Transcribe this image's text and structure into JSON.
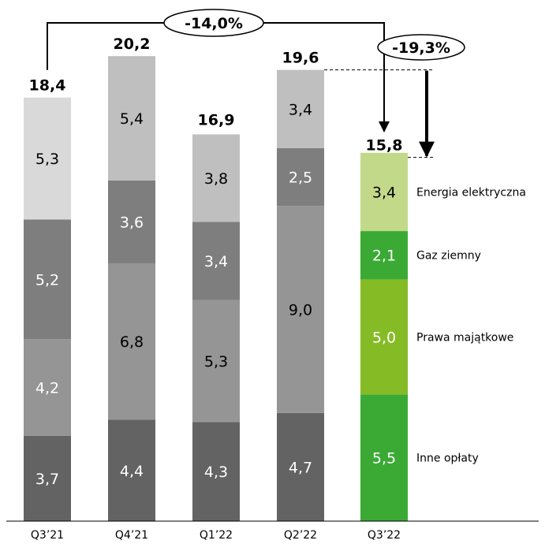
{
  "chart_data": {
    "type": "bar",
    "stacked": true,
    "categories": [
      "Q3’21",
      "Q4’21",
      "Q1’22",
      "Q2’22",
      "Q3’22"
    ],
    "segment_order": [
      "Inne opłaty",
      "Prawa majątkowe",
      "Gaz ziemny",
      "Energia elektryczna"
    ],
    "bars": [
      {
        "segments": [
          3.7,
          4.2,
          5.2,
          5.3
        ],
        "segment_labels": [
          "3,7",
          "4,2",
          "5,2",
          "5,3"
        ],
        "total": 18.4,
        "total_label": "18,4"
      },
      {
        "segments": [
          4.4,
          6.8,
          3.6,
          5.4
        ],
        "segment_labels": [
          "4,4",
          "6,8",
          "3,6",
          "5,4"
        ],
        "total": 20.2,
        "total_label": "20,2"
      },
      {
        "segments": [
          4.3,
          5.3,
          3.4,
          3.8
        ],
        "segment_labels": [
          "4,3",
          "5,3",
          "3,4",
          "3,8"
        ],
        "total": 16.9,
        "total_label": "16,9"
      },
      {
        "segments": [
          4.7,
          9.0,
          2.5,
          3.4
        ],
        "segment_labels": [
          "4,7",
          "9,0",
          "2,5",
          "3,4"
        ],
        "total": 19.6,
        "total_label": "19,6"
      },
      {
        "segments": [
          5.5,
          5.0,
          2.1,
          3.4
        ],
        "segment_labels": [
          "5,5",
          "5,0",
          "2,1",
          "3,4"
        ],
        "total": 15.8,
        "total_label": "15,8"
      }
    ],
    "legend": [
      "Energia elektryczna",
      "Gaz ziemny",
      "Prawa majątkowe",
      "Inne opłaty"
    ],
    "annotations": [
      {
        "label": "-14,0%",
        "from": "Q3’21",
        "to": "Q3’22"
      },
      {
        "label": "-19,3%",
        "from": "Q2’22",
        "to": "Q3’22"
      }
    ],
    "colors": {
      "Q3_21": [
        "#636363",
        "#959595",
        "#7e7e7e",
        "#d9d9d9"
      ],
      "Q4_21": [
        "#636363",
        "#959595",
        "#7e7e7e",
        "#bfbfbf"
      ],
      "Q1_22": [
        "#636363",
        "#959595",
        "#7e7e7e",
        "#bfbfbf"
      ],
      "Q2_22": [
        "#636363",
        "#959595",
        "#7e7e7e",
        "#bfbfbf"
      ],
      "Q3_22": [
        "#3aaa35",
        "#85bb25",
        "#3aaa35",
        "#c3d98a"
      ]
    },
    "title": "",
    "xlabel": "",
    "ylabel": "",
    "grid": false
  }
}
